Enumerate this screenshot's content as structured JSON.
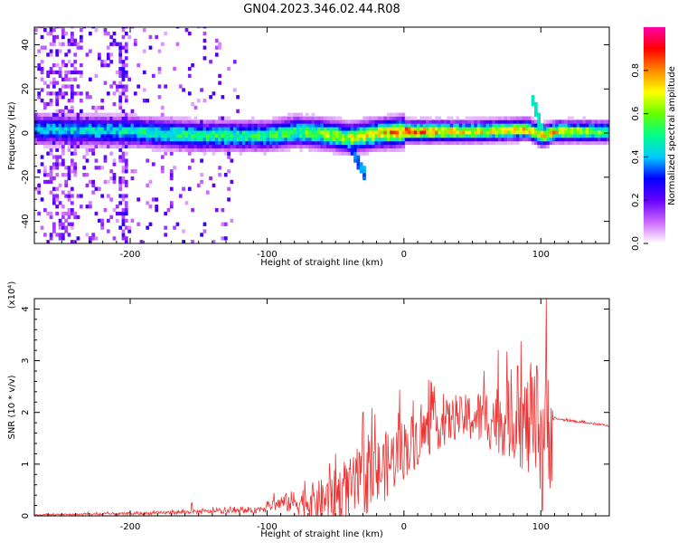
{
  "title": "GN04.2023.346.02.44.R08",
  "chart_data": [
    {
      "type": "heatmap",
      "xlabel": "Height of straight line (km)",
      "ylabel": "Frequency (Hz)",
      "xlim": [
        -270,
        150
      ],
      "ylim": [
        -50,
        48
      ],
      "xticks": [
        -200,
        -100,
        0,
        100
      ],
      "yticks": [
        -40,
        -20,
        0,
        20,
        40
      ],
      "colorbar": {
        "label": "Normalized spectral amplitude",
        "range": [
          0,
          1
        ],
        "ticks": [
          0.0,
          0.2,
          0.4,
          0.6,
          0.8
        ],
        "colormap": [
          "#ffffff",
          "#cc66ff",
          "#6600ff",
          "#0000ff",
          "#00ccff",
          "#00ff88",
          "#66ff00",
          "#ffff00",
          "#ff8800",
          "#ff0000",
          "#ff00aa"
        ]
      },
      "band_center": [
        {
          "x": -270,
          "y": 1
        },
        {
          "x": -200,
          "y": 0
        },
        {
          "x": -150,
          "y": -2
        },
        {
          "x": -100,
          "y": -2
        },
        {
          "x": -80,
          "y": 0
        },
        {
          "x": -60,
          "y": -1
        },
        {
          "x": -40,
          "y": -3
        },
        {
          "x": -20,
          "y": -1
        },
        {
          "x": 0,
          "y": 0
        },
        {
          "x": 50,
          "y": 0
        },
        {
          "x": 90,
          "y": 1
        },
        {
          "x": 100,
          "y": -2
        },
        {
          "x": 110,
          "y": 0
        },
        {
          "x": 150,
          "y": 0
        }
      ],
      "band_amplitude": [
        {
          "x": -270,
          "v": 0.45
        },
        {
          "x": -200,
          "v": 0.5
        },
        {
          "x": -150,
          "v": 0.55
        },
        {
          "x": -100,
          "v": 0.55
        },
        {
          "x": -60,
          "v": 0.65
        },
        {
          "x": -20,
          "v": 0.75
        },
        {
          "x": 0,
          "v": 0.9
        },
        {
          "x": 50,
          "v": 0.75
        },
        {
          "x": 100,
          "v": 0.8
        },
        {
          "x": 150,
          "v": 0.6
        }
      ]
    },
    {
      "type": "line",
      "xlabel": "Height of straight line (km)",
      "ylabel": "SNR (10 * v/v)",
      "multiplier": "(x10⁴)",
      "xlim": [
        -270,
        150
      ],
      "ylim": [
        0,
        4.2
      ],
      "xticks": [
        -200,
        -100,
        0,
        100
      ],
      "yticks": [
        0,
        1,
        2,
        3,
        4
      ],
      "series": [
        {
          "color": "#ee3333",
          "envelope_base": [
            {
              "x": -270,
              "y": 0.02
            },
            {
              "x": -200,
              "y": 0.04
            },
            {
              "x": -150,
              "y": 0.08
            },
            {
              "x": -110,
              "y": 0.1
            },
            {
              "x": -90,
              "y": 0.25
            },
            {
              "x": -60,
              "y": 0.3
            },
            {
              "x": -40,
              "y": 0.5
            },
            {
              "x": -20,
              "y": 0.8
            },
            {
              "x": 0,
              "y": 1.3
            },
            {
              "x": 20,
              "y": 1.7
            },
            {
              "x": 40,
              "y": 1.9
            },
            {
              "x": 60,
              "y": 1.9
            },
            {
              "x": 80,
              "y": 1.85
            },
            {
              "x": 100,
              "y": 1.6
            },
            {
              "x": 110,
              "y": 1.88
            },
            {
              "x": 150,
              "y": 1.74
            }
          ],
          "envelope_noise": [
            {
              "x": -270,
              "y": 0.01
            },
            {
              "x": -110,
              "y": 0.05
            },
            {
              "x": -90,
              "y": 0.15
            },
            {
              "x": -40,
              "y": 0.6
            },
            {
              "x": -20,
              "y": 0.7
            },
            {
              "x": 0,
              "y": 0.6
            },
            {
              "x": 40,
              "y": 0.4
            },
            {
              "x": 80,
              "y": 0.8
            },
            {
              "x": 100,
              "y": 1.2
            },
            {
              "x": 108,
              "y": 1.3
            },
            {
              "x": 109,
              "y": 0.02
            },
            {
              "x": 150,
              "y": 0.02
            }
          ],
          "peaks": [
            {
              "x": 104,
              "y": 4.2
            },
            {
              "x": 101,
              "y": 0.1
            },
            {
              "x": 83,
              "y": 2.9
            },
            {
              "x": 97,
              "y": 2.9
            },
            {
              "x": -30,
              "y": 2.0
            },
            {
              "x": -50,
              "y": 1.2
            },
            {
              "x": -155,
              "y": 0.25
            }
          ]
        }
      ]
    }
  ]
}
